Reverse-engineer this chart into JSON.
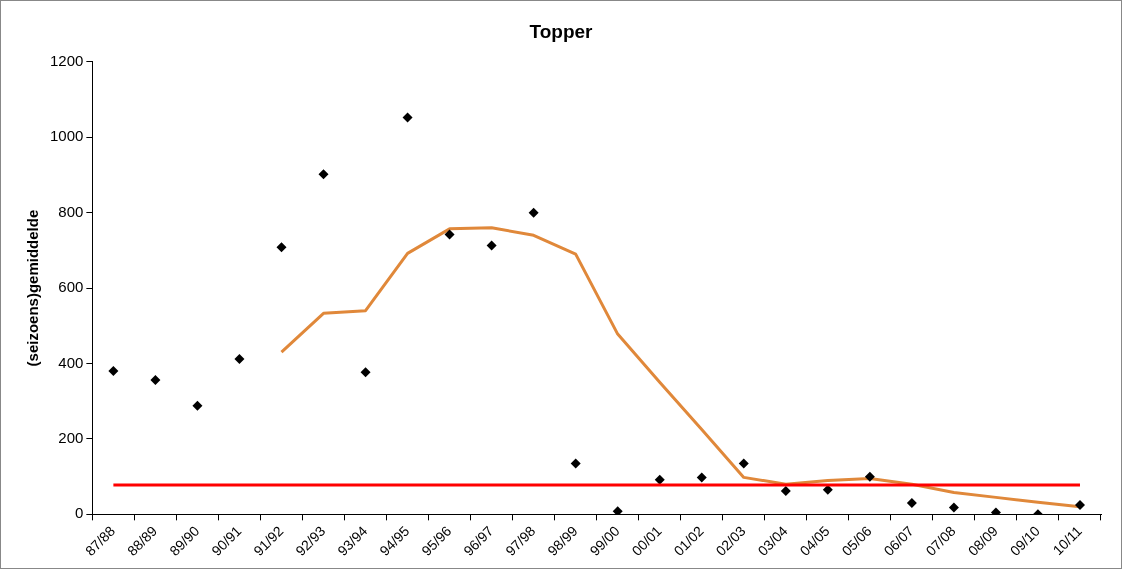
{
  "chart_data": {
    "type": "line",
    "title": "Topper",
    "ylabel": "(seizoens)gemiddelde",
    "categories": [
      "87/88",
      "88/89",
      "89/90",
      "90/91",
      "91/92",
      "92/93",
      "93/94",
      "94/95",
      "95/96",
      "96/97",
      "97/98",
      "98/99",
      "99/00",
      "00/01",
      "01/02",
      "02/03",
      "03/04",
      "04/05",
      "05/06",
      "06/07",
      "07/08",
      "08/09",
      "09/10",
      "10/11"
    ],
    "series": [
      {
        "type": "scatter",
        "color": "#000000",
        "marker": "diamond",
        "values": [
          380,
          356,
          288,
          412,
          708,
          902,
          377,
          1052,
          742,
          713,
          800,
          135,
          8,
          92,
          98,
          135,
          62,
          65,
          100,
          30,
          18,
          5,
          0,
          25
        ]
      },
      {
        "type": "line",
        "color": "#e0883a",
        "marker": "none",
        "line_style": "solid",
        "values": [
          null,
          null,
          null,
          null,
          430,
          533,
          540,
          692,
          757,
          760,
          740,
          690,
          478,
          350,
          225,
          98,
          80,
          90,
          95,
          80,
          58,
          45,
          32,
          20
        ]
      }
    ],
    "ref_lines": [
      {
        "axis": "y",
        "value": 78,
        "color": "#ff0000",
        "line_style": "solid"
      }
    ],
    "ylim": [
      0,
      1200
    ],
    "yticks": [
      0,
      200,
      400,
      600,
      800,
      1000,
      1200
    ],
    "grid": false,
    "legend": false
  }
}
